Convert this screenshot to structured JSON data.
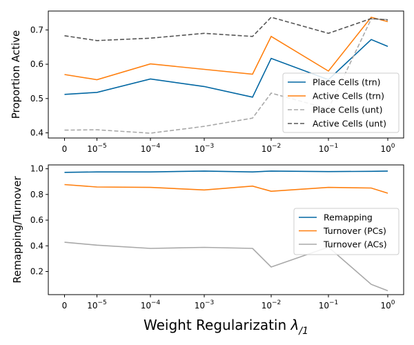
{
  "chart_data": [
    {
      "type": "line",
      "ylabel": "Proportion Active",
      "x_labels": [
        "0",
        "10^-5",
        "10^-4",
        "10^-3",
        "10^-2",
        "10^-1",
        "10^0"
      ],
      "yticks": [
        "0.4",
        "0.5",
        "0.6",
        "0.7"
      ],
      "ylim": [
        0.385,
        0.755
      ],
      "grid": false,
      "legend_position": "lower-right",
      "series": [
        {
          "name": "Place Cells (trn)",
          "color": "#0066a2",
          "dash": "solid",
          "y": [
            0.512,
            0.518,
            0.557,
            0.535,
            0.504,
            0.617,
            0.555,
            0.672,
            0.652
          ]
        },
        {
          "name": "Active Cells (trn)",
          "color": "#ff7f0e",
          "dash": "solid",
          "y": [
            0.57,
            0.555,
            0.601,
            0.585,
            0.571,
            0.681,
            0.58,
            0.737,
            0.724
          ]
        },
        {
          "name": "Place Cells (unt)",
          "color": "#a8a8a8",
          "dash": "dashed",
          "y": [
            0.408,
            0.409,
            0.399,
            0.419,
            0.443,
            0.516,
            0.47,
            0.732,
            0.73
          ]
        },
        {
          "name": "Active Cells (unt)",
          "color": "#555555",
          "dash": "dashed",
          "y": [
            0.683,
            0.669,
            0.676,
            0.69,
            0.681,
            0.737,
            0.69,
            0.733,
            0.729
          ]
        }
      ]
    },
    {
      "type": "line",
      "ylabel": "Remapping/Turnover",
      "xlabel": "Weight Regularizatin λ/1",
      "x_labels": [
        "0",
        "10^-5",
        "10^-4",
        "10^-3",
        "10^-2",
        "10^-1",
        "10^0"
      ],
      "yticks": [
        "0.2",
        "0.4",
        "0.6",
        "0.8",
        "1.0"
      ],
      "ylim": [
        0.02,
        1.03
      ],
      "grid": false,
      "legend_position": "center-right",
      "series": [
        {
          "name": "Remapping",
          "color": "#0066a2",
          "dash": "solid",
          "y": [
            0.972,
            0.975,
            0.975,
            0.982,
            0.975,
            0.982,
            0.978,
            0.98,
            0.982
          ]
        },
        {
          "name": "Turnover (PCs)",
          "color": "#ff7f0e",
          "dash": "solid",
          "y": [
            0.877,
            0.858,
            0.855,
            0.835,
            0.865,
            0.825,
            0.855,
            0.85,
            0.81
          ]
        },
        {
          "name": "Turnover (ACs)",
          "color": "#a8a8a8",
          "dash": "solid",
          "y": [
            0.428,
            0.405,
            0.38,
            0.388,
            0.38,
            0.235,
            0.39,
            0.1,
            0.05
          ]
        }
      ]
    }
  ]
}
